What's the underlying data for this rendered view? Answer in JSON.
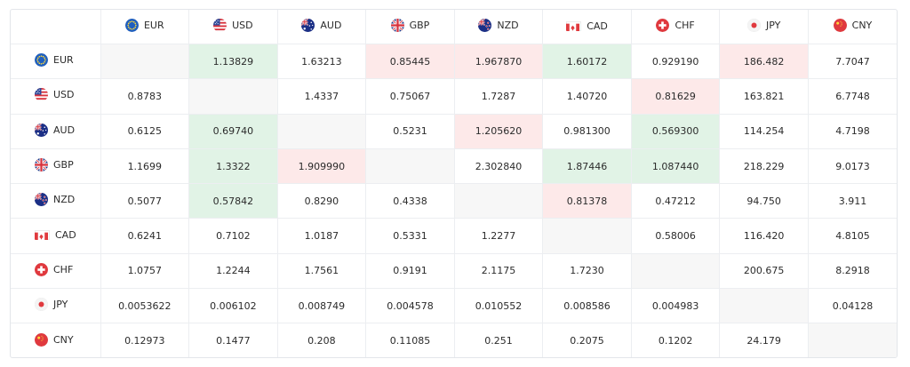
{
  "currencies": [
    {
      "code": "EUR",
      "icon": "eu-flag-icon"
    },
    {
      "code": "USD",
      "icon": "us-flag-icon"
    },
    {
      "code": "AUD",
      "icon": "australia-flag-icon"
    },
    {
      "code": "GBP",
      "icon": "uk-flag-icon"
    },
    {
      "code": "NZD",
      "icon": "new-zealand-flag-icon"
    },
    {
      "code": "CAD",
      "icon": "canada-flag-icon"
    },
    {
      "code": "CHF",
      "icon": "switzerland-flag-icon"
    },
    {
      "code": "JPY",
      "icon": "japan-flag-icon"
    },
    {
      "code": "CNY",
      "icon": "china-flag-icon"
    }
  ],
  "colors": {
    "positive_cell": "#e1f3e6",
    "negative_cell": "#fde9e9",
    "empty_cell": "#f7f7f7"
  },
  "rows": [
    {
      "code": "EUR",
      "cells": [
        {
          "v": "",
          "s": "empty"
        },
        {
          "v": "1.13829",
          "s": "pos"
        },
        {
          "v": "1.63213",
          "s": ""
        },
        {
          "v": "0.85445",
          "s": "neg"
        },
        {
          "v": "1.967870",
          "s": "neg"
        },
        {
          "v": "1.60172",
          "s": "pos"
        },
        {
          "v": "0.929190",
          "s": ""
        },
        {
          "v": "186.482",
          "s": "neg"
        },
        {
          "v": "7.7047",
          "s": ""
        }
      ]
    },
    {
      "code": "USD",
      "cells": [
        {
          "v": "0.8783",
          "s": ""
        },
        {
          "v": "",
          "s": "empty"
        },
        {
          "v": "1.4337",
          "s": ""
        },
        {
          "v": "0.75067",
          "s": ""
        },
        {
          "v": "1.7287",
          "s": ""
        },
        {
          "v": "1.40720",
          "s": ""
        },
        {
          "v": "0.81629",
          "s": "neg"
        },
        {
          "v": "163.821",
          "s": ""
        },
        {
          "v": "6.7748",
          "s": ""
        }
      ]
    },
    {
      "code": "AUD",
      "cells": [
        {
          "v": "0.6125",
          "s": ""
        },
        {
          "v": "0.69740",
          "s": "pos"
        },
        {
          "v": "",
          "s": "empty"
        },
        {
          "v": "0.5231",
          "s": ""
        },
        {
          "v": "1.205620",
          "s": "neg"
        },
        {
          "v": "0.981300",
          "s": ""
        },
        {
          "v": "0.569300",
          "s": "pos"
        },
        {
          "v": "114.254",
          "s": ""
        },
        {
          "v": "4.7198",
          "s": ""
        }
      ]
    },
    {
      "code": "GBP",
      "cells": [
        {
          "v": "1.1699",
          "s": ""
        },
        {
          "v": "1.3322",
          "s": "pos"
        },
        {
          "v": "1.909990",
          "s": "neg"
        },
        {
          "v": "",
          "s": "empty"
        },
        {
          "v": "2.302840",
          "s": ""
        },
        {
          "v": "1.87446",
          "s": "pos"
        },
        {
          "v": "1.087440",
          "s": "pos"
        },
        {
          "v": "218.229",
          "s": ""
        },
        {
          "v": "9.0173",
          "s": ""
        }
      ]
    },
    {
      "code": "NZD",
      "cells": [
        {
          "v": "0.5077",
          "s": ""
        },
        {
          "v": "0.57842",
          "s": "pos"
        },
        {
          "v": "0.8290",
          "s": ""
        },
        {
          "v": "0.4338",
          "s": ""
        },
        {
          "v": "",
          "s": "empty"
        },
        {
          "v": "0.81378",
          "s": "neg"
        },
        {
          "v": "0.47212",
          "s": ""
        },
        {
          "v": "94.750",
          "s": ""
        },
        {
          "v": "3.911",
          "s": ""
        }
      ]
    },
    {
      "code": "CAD",
      "cells": [
        {
          "v": "0.6241",
          "s": ""
        },
        {
          "v": "0.7102",
          "s": ""
        },
        {
          "v": "1.0187",
          "s": ""
        },
        {
          "v": "0.5331",
          "s": ""
        },
        {
          "v": "1.2277",
          "s": ""
        },
        {
          "v": "",
          "s": "empty"
        },
        {
          "v": "0.58006",
          "s": ""
        },
        {
          "v": "116.420",
          "s": ""
        },
        {
          "v": "4.8105",
          "s": ""
        }
      ]
    },
    {
      "code": "CHF",
      "cells": [
        {
          "v": "1.0757",
          "s": ""
        },
        {
          "v": "1.2244",
          "s": ""
        },
        {
          "v": "1.7561",
          "s": ""
        },
        {
          "v": "0.9191",
          "s": ""
        },
        {
          "v": "2.1175",
          "s": ""
        },
        {
          "v": "1.7230",
          "s": ""
        },
        {
          "v": "",
          "s": "empty"
        },
        {
          "v": "200.675",
          "s": ""
        },
        {
          "v": "8.2918",
          "s": ""
        }
      ]
    },
    {
      "code": "JPY",
      "cells": [
        {
          "v": "0.0053622",
          "s": ""
        },
        {
          "v": "0.006102",
          "s": ""
        },
        {
          "v": "0.008749",
          "s": ""
        },
        {
          "v": "0.004578",
          "s": ""
        },
        {
          "v": "0.010552",
          "s": ""
        },
        {
          "v": "0.008586",
          "s": ""
        },
        {
          "v": "0.004983",
          "s": ""
        },
        {
          "v": "",
          "s": "empty"
        },
        {
          "v": "0.04128",
          "s": ""
        }
      ]
    },
    {
      "code": "CNY",
      "cells": [
        {
          "v": "0.12973",
          "s": ""
        },
        {
          "v": "0.1477",
          "s": ""
        },
        {
          "v": "0.208",
          "s": ""
        },
        {
          "v": "0.11085",
          "s": ""
        },
        {
          "v": "0.251",
          "s": ""
        },
        {
          "v": "0.2075",
          "s": ""
        },
        {
          "v": "0.1202",
          "s": ""
        },
        {
          "v": "24.179",
          "s": ""
        },
        {
          "v": "",
          "s": "empty"
        }
      ]
    }
  ]
}
